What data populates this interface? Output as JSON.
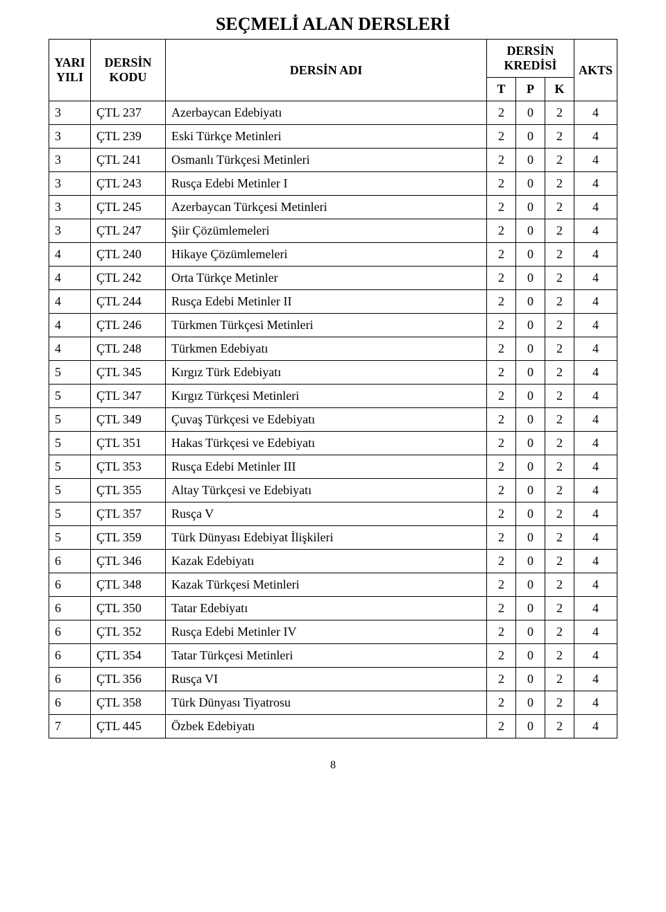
{
  "title": "SEÇMELİ ALAN DERSLERİ",
  "header": {
    "yari_yili_top": "YARI",
    "yari_yili_bot": "YILI",
    "dersin_kodu_top": "DERSİN",
    "dersin_kodu_bot": "KODU",
    "dersin_adi": "DERSİN ADI",
    "dersin_kredisi_top": "DERSİN",
    "dersin_kredisi_bot": "KREDİSİ",
    "t": "T",
    "p": "P",
    "k": "K",
    "akts": "AKTS"
  },
  "rows": [
    {
      "yy": "3",
      "code": "ÇTL 237",
      "name": "Azerbaycan Edebiyatı",
      "t": "2",
      "p": "0",
      "k": "2",
      "akts": "4"
    },
    {
      "yy": "3",
      "code": "ÇTL 239",
      "name": "Eski Türkçe Metinleri",
      "t": "2",
      "p": "0",
      "k": "2",
      "akts": "4"
    },
    {
      "yy": "3",
      "code": "ÇTL 241",
      "name": "Osmanlı Türkçesi Metinleri",
      "t": "2",
      "p": "0",
      "k": "2",
      "akts": "4"
    },
    {
      "yy": "3",
      "code": "ÇTL 243",
      "name": "Rusça Edebi Metinler I",
      "t": "2",
      "p": "0",
      "k": "2",
      "akts": "4"
    },
    {
      "yy": "3",
      "code": "ÇTL 245",
      "name": "Azerbaycan Türkçesi Metinleri",
      "t": "2",
      "p": "0",
      "k": "2",
      "akts": "4"
    },
    {
      "yy": "3",
      "code": "ÇTL 247",
      "name": "Şiir Çözümlemeleri",
      "t": "2",
      "p": "0",
      "k": "2",
      "akts": "4"
    },
    {
      "yy": "4",
      "code": "ÇTL 240",
      "name": "Hikaye Çözümlemeleri",
      "t": "2",
      "p": "0",
      "k": "2",
      "akts": "4"
    },
    {
      "yy": "4",
      "code": "ÇTL 242",
      "name": "Orta Türkçe Metinler",
      "t": "2",
      "p": "0",
      "k": "2",
      "akts": "4"
    },
    {
      "yy": "4",
      "code": "ÇTL 244",
      "name": "Rusça Edebi Metinler II",
      "t": "2",
      "p": "0",
      "k": "2",
      "akts": "4"
    },
    {
      "yy": "4",
      "code": "ÇTL 246",
      "name": "Türkmen Türkçesi Metinleri",
      "t": "2",
      "p": "0",
      "k": "2",
      "akts": "4"
    },
    {
      "yy": "4",
      "code": "ÇTL 248",
      "name": "Türkmen Edebiyatı",
      "t": "2",
      "p": "0",
      "k": "2",
      "akts": "4"
    },
    {
      "yy": "5",
      "code": "ÇTL 345",
      "name": "Kırgız Türk Edebiyatı",
      "t": "2",
      "p": "0",
      "k": "2",
      "akts": "4"
    },
    {
      "yy": "5",
      "code": "ÇTL 347",
      "name": "Kırgız Türkçesi Metinleri",
      "t": "2",
      "p": "0",
      "k": "2",
      "akts": "4"
    },
    {
      "yy": "5",
      "code": "ÇTL 349",
      "name": "Çuvaş Türkçesi ve Edebiyatı",
      "t": "2",
      "p": "0",
      "k": "2",
      "akts": "4"
    },
    {
      "yy": "5",
      "code": "ÇTL 351",
      "name": "Hakas Türkçesi ve Edebiyatı",
      "t": "2",
      "p": "0",
      "k": "2",
      "akts": "4"
    },
    {
      "yy": "5",
      "code": "ÇTL 353",
      "name": "Rusça Edebi Metinler III",
      "t": "2",
      "p": "0",
      "k": "2",
      "akts": "4"
    },
    {
      "yy": "5",
      "code": "ÇTL 355",
      "name": "Altay Türkçesi ve Edebiyatı",
      "t": "2",
      "p": "0",
      "k": "2",
      "akts": "4"
    },
    {
      "yy": "5",
      "code": "ÇTL 357",
      "name": "Rusça V",
      "t": "2",
      "p": "0",
      "k": "2",
      "akts": "4"
    },
    {
      "yy": "5",
      "code": "ÇTL 359",
      "name": "Türk Dünyası Edebiyat İlişkileri",
      "t": "2",
      "p": "0",
      "k": "2",
      "akts": "4"
    },
    {
      "yy": "6",
      "code": "ÇTL 346",
      "name": "Kazak Edebiyatı",
      "t": "2",
      "p": "0",
      "k": "2",
      "akts": "4"
    },
    {
      "yy": "6",
      "code": "ÇTL 348",
      "name": "Kazak Türkçesi Metinleri",
      "t": "2",
      "p": "0",
      "k": "2",
      "akts": "4"
    },
    {
      "yy": "6",
      "code": "ÇTL 350",
      "name": "Tatar Edebiyatı",
      "t": "2",
      "p": "0",
      "k": "2",
      "akts": "4"
    },
    {
      "yy": "6",
      "code": "ÇTL 352",
      "name": "Rusça Edebi Metinler IV",
      "t": "2",
      "p": "0",
      "k": "2",
      "akts": "4"
    },
    {
      "yy": "6",
      "code": "ÇTL 354",
      "name": "Tatar Türkçesi Metinleri",
      "t": "2",
      "p": "0",
      "k": "2",
      "akts": "4"
    },
    {
      "yy": "6",
      "code": "ÇTL 356",
      "name": "Rusça VI",
      "t": "2",
      "p": "0",
      "k": "2",
      "akts": "4"
    },
    {
      "yy": "6",
      "code": "ÇTL 358",
      "name": "Türk Dünyası Tiyatrosu",
      "t": "2",
      "p": "0",
      "k": "2",
      "akts": "4"
    },
    {
      "yy": "7",
      "code": "ÇTL 445",
      "name": "Özbek Edebiyatı",
      "t": "2",
      "p": "0",
      "k": "2",
      "akts": "4"
    }
  ],
  "page_number": "8"
}
